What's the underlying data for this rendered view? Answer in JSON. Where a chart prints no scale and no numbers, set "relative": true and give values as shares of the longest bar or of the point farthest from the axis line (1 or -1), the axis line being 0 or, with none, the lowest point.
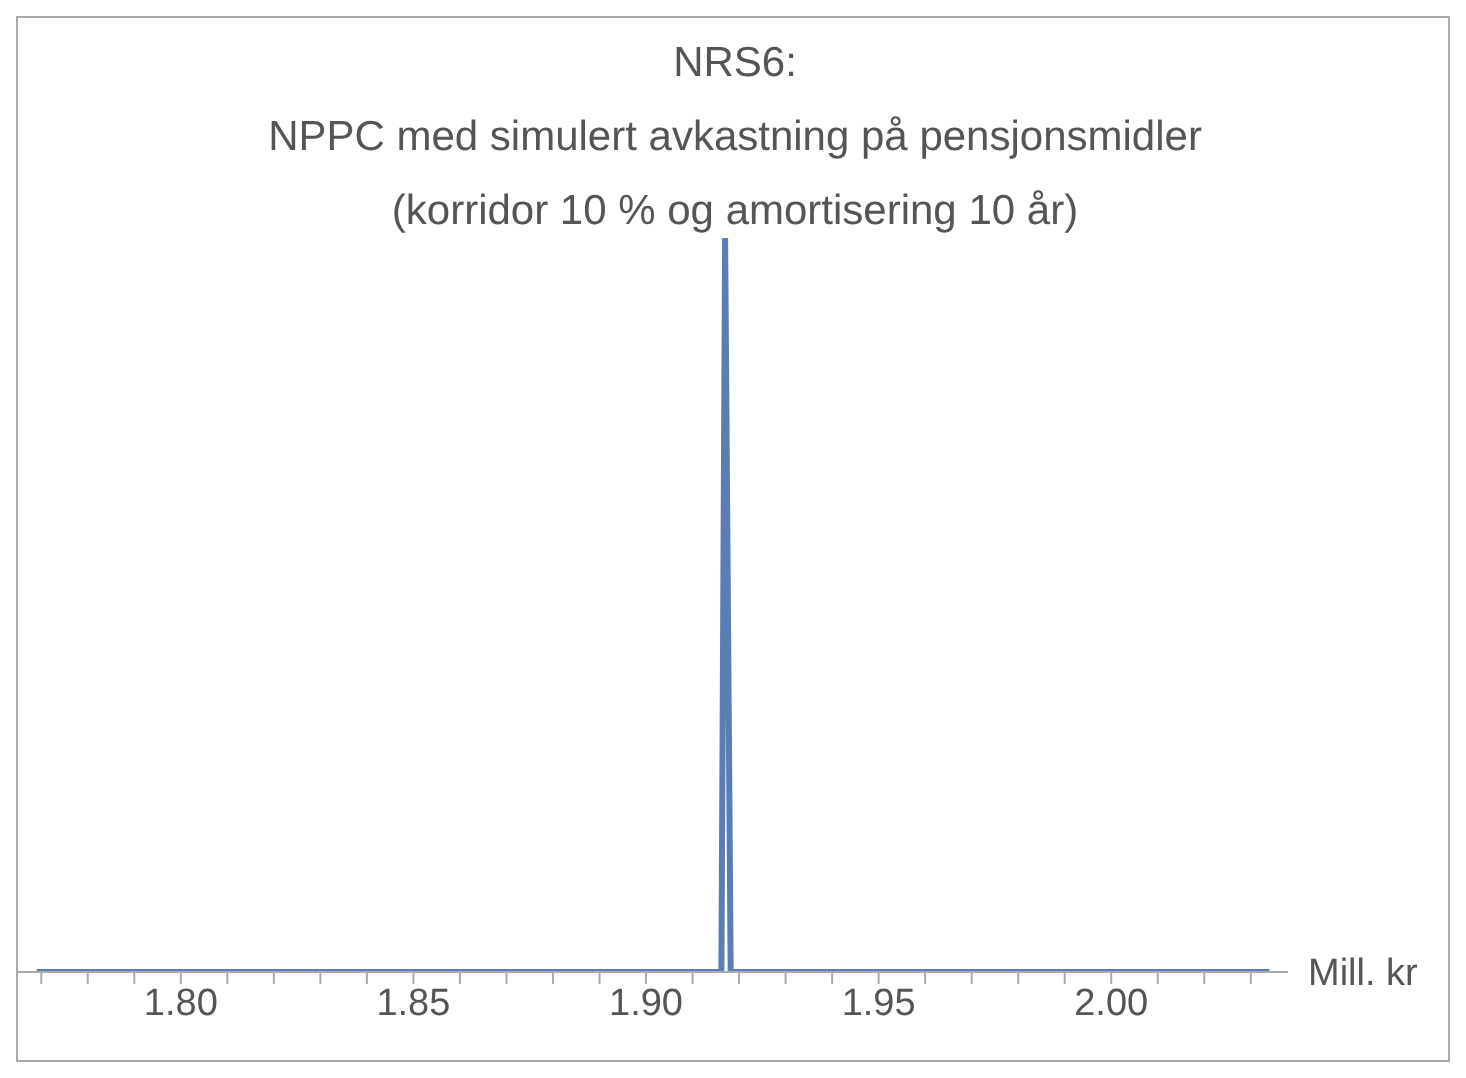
{
  "chart_data": {
    "type": "line",
    "title": "NRS6:\nNPPC med simulert avkastning på pensjonsmidler\n(korridor 10 % og amortisering 10 år)",
    "xlabel": "Mill. kr",
    "relative": true,
    "x": [
      1.769,
      1.9162,
      1.917,
      1.9182,
      2.034
    ],
    "series": [
      {
        "color": "#5a7db5",
        "values": [
          0,
          0,
          1,
          0,
          0
        ]
      }
    ],
    "xlim": [
      1.765,
      2.038
    ],
    "xticks": [
      {
        "value": 1.77,
        "label": null
      },
      {
        "value": 1.78,
        "label": null
      },
      {
        "value": 1.79,
        "label": null
      },
      {
        "value": 1.8,
        "label": "1.80"
      },
      {
        "value": 1.81,
        "label": null
      },
      {
        "value": 1.82,
        "label": null
      },
      {
        "value": 1.83,
        "label": null
      },
      {
        "value": 1.84,
        "label": null
      },
      {
        "value": 1.85,
        "label": "1.85"
      },
      {
        "value": 1.86,
        "label": null
      },
      {
        "value": 1.87,
        "label": null
      },
      {
        "value": 1.88,
        "label": null
      },
      {
        "value": 1.89,
        "label": null
      },
      {
        "value": 1.9,
        "label": "1.90"
      },
      {
        "value": 1.91,
        "label": null
      },
      {
        "value": 1.92,
        "label": null
      },
      {
        "value": 1.93,
        "label": null
      },
      {
        "value": 1.94,
        "label": null
      },
      {
        "value": 1.95,
        "label": "1.95"
      },
      {
        "value": 1.96,
        "label": null
      },
      {
        "value": 1.97,
        "label": null
      },
      {
        "value": 1.98,
        "label": null
      },
      {
        "value": 1.99,
        "label": null
      },
      {
        "value": 2.0,
        "label": "2.00"
      },
      {
        "value": 2.01,
        "label": null
      },
      {
        "value": 2.02,
        "label": null
      },
      {
        "value": 2.03,
        "label": null
      }
    ],
    "grid": false,
    "legend": false,
    "marker": "none",
    "line_style": "solid"
  }
}
